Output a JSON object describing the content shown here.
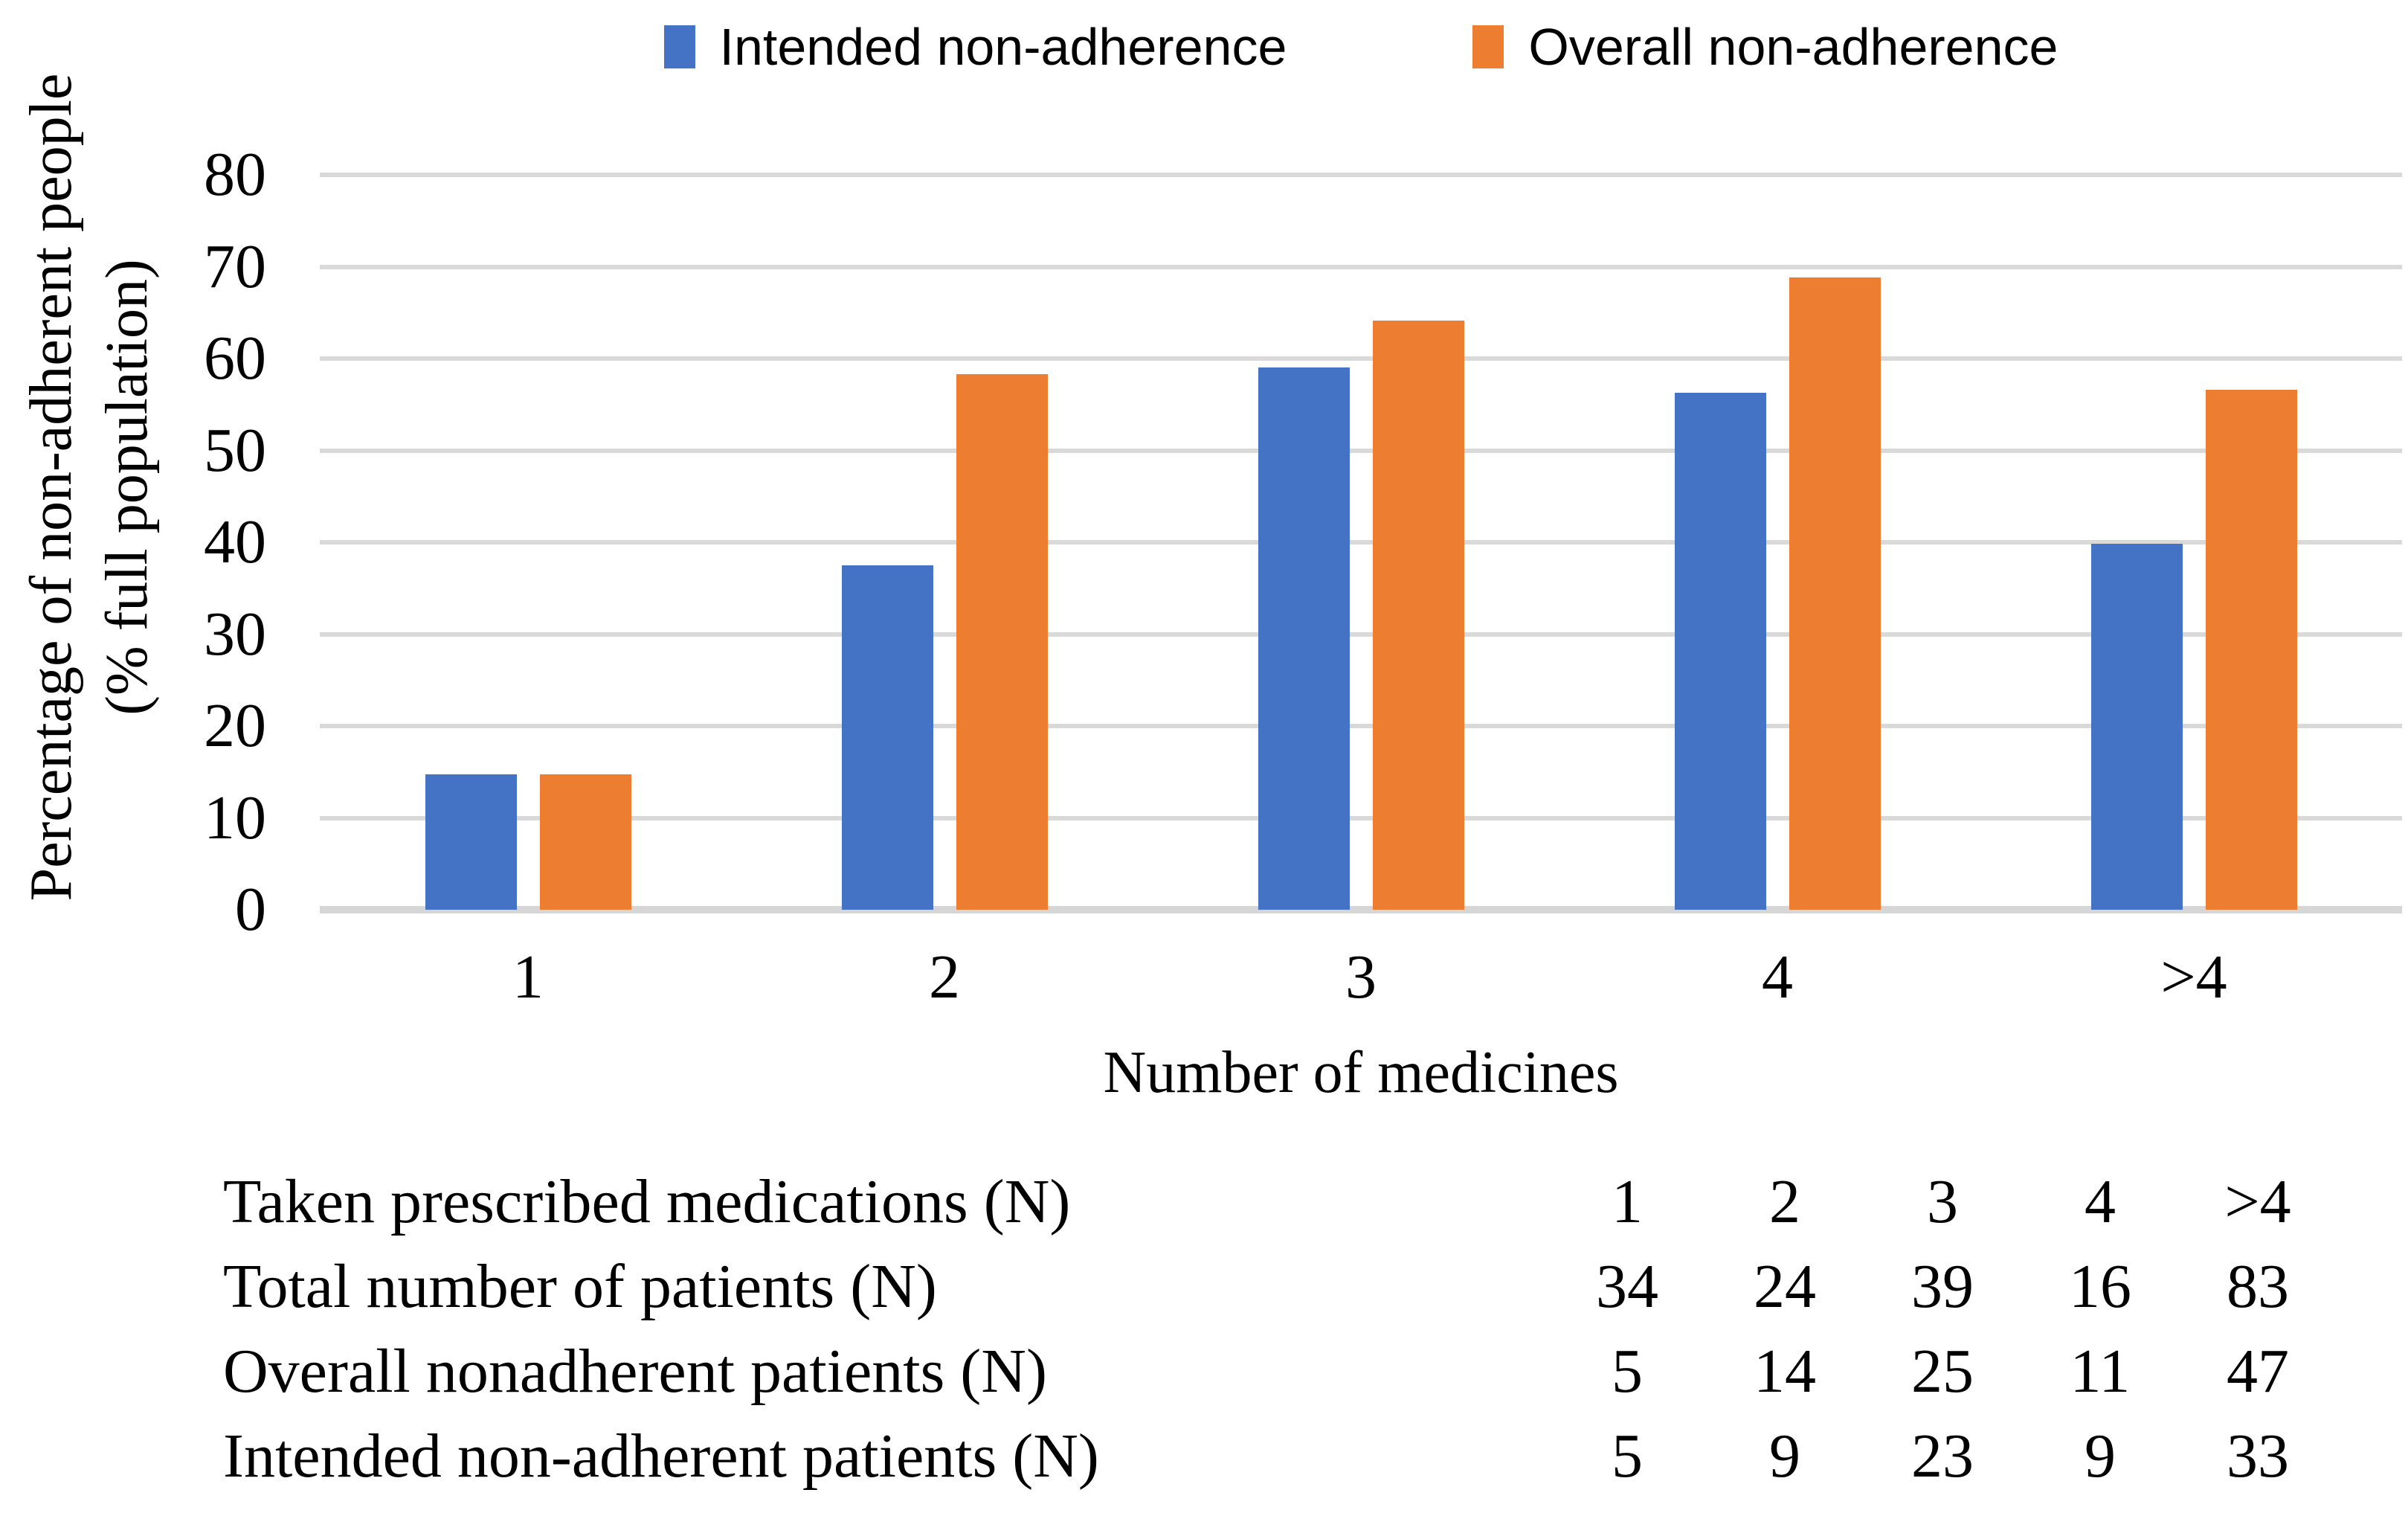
{
  "chart_data": {
    "type": "bar",
    "title": "",
    "categories": [
      "1",
      "2",
      "3",
      "4",
      ">4"
    ],
    "series": [
      {
        "name": "Intended non-adherence",
        "color": "#4472C4",
        "values": [
          14.7,
          37.5,
          59.0,
          56.3,
          39.8
        ]
      },
      {
        "name": "Overall non-adherence",
        "color": "#ED7D31",
        "values": [
          14.7,
          58.3,
          64.1,
          68.8,
          56.6
        ]
      }
    ],
    "xlabel": "Number of medicines",
    "ylabel": "Percentage of non-adherent people (% full population)",
    "ylabel_lines": [
      "Percentage of non-adherent people",
      "(% full population)"
    ],
    "ylim": [
      0,
      80
    ],
    "ytick_step": 10,
    "grid": true,
    "legend_position": "top"
  },
  "table": {
    "rows": [
      {
        "label": "Taken prescribed medications (N)",
        "values": [
          "1",
          "2",
          "3",
          "4",
          ">4"
        ]
      },
      {
        "label": "Total number of patients (N)",
        "values": [
          "34",
          "24",
          "39",
          "16",
          "83"
        ]
      },
      {
        "label": "Overall nonadherent patients (N)",
        "values": [
          "5",
          "14",
          "25",
          "11",
          "47"
        ]
      },
      {
        "label": "Intended non-adherent patients (N)",
        "values": [
          "5",
          "9",
          "23",
          "9",
          "33"
        ]
      }
    ]
  },
  "colors": {
    "intended": "#4472C4",
    "overall": "#ED7D31",
    "gridline": "#D9D9D9",
    "axis_line": "#D6D6D6",
    "text": "#000000"
  }
}
